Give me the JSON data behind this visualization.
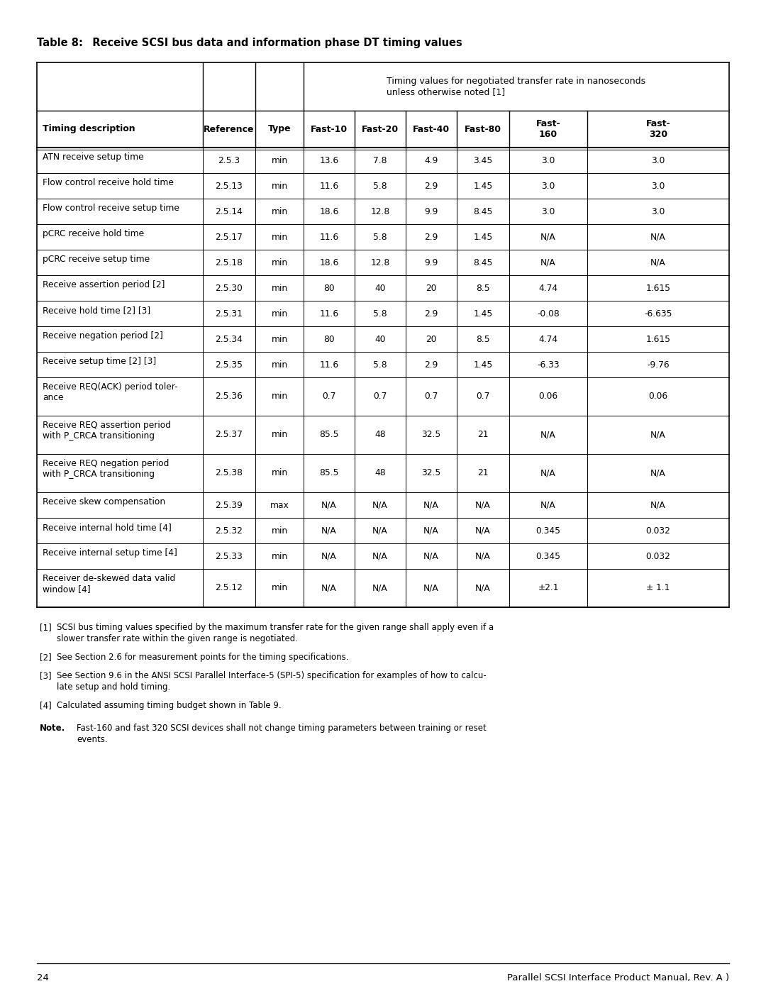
{
  "title_bold": "Table 8:",
  "title_rest": "  Receive SCSI bus data and information phase DT timing values",
  "page_number": "24",
  "footer_text": "Parallel SCSI Interface Product Manual, Rev. A )",
  "span_header": "Timing values for negotiated transfer rate in nanoseconds\nunless otherwise noted [1]",
  "col_headers_line1": [
    "",
    "",
    "",
    "Fast-10",
    "Fast-20",
    "Fast-40",
    "Fast-80",
    "Fast-",
    "Fast-"
  ],
  "col_headers_line2": [
    "Timing description",
    "Reference",
    "Type",
    "",
    "",
    "",
    "",
    "160",
    "320"
  ],
  "rows": [
    [
      "ATN receive setup time",
      "2.5.3",
      "min",
      "13.6",
      "7.8",
      "4.9",
      "3.45",
      "3.0",
      "3.0"
    ],
    [
      "Flow control receive hold time",
      "2.5.13",
      "min",
      "11.6",
      "5.8",
      "2.9",
      "1.45",
      "3.0",
      "3.0"
    ],
    [
      "Flow control receive setup time",
      "2.5.14",
      "min",
      "18.6",
      "12.8",
      "9.9",
      "8.45",
      "3.0",
      "3.0"
    ],
    [
      "pCRC receive hold time",
      "2.5.17",
      "min",
      "11.6",
      "5.8",
      "2.9",
      "1.45",
      "N/A",
      "N/A"
    ],
    [
      "pCRC receive setup time",
      "2.5.18",
      "min",
      "18.6",
      "12.8",
      "9.9",
      "8.45",
      "N/A",
      "N/A"
    ],
    [
      "Receive assertion period [2]",
      "2.5.30",
      "min",
      "80",
      "40",
      "20",
      "8.5",
      "4.74",
      "1.615"
    ],
    [
      "Receive hold time [2] [3]",
      "2.5.31",
      "min",
      "11.6",
      "5.8",
      "2.9",
      "1.45",
      "-0.08",
      "-6.635"
    ],
    [
      "Receive negation period [2]",
      "2.5.34",
      "min",
      "80",
      "40",
      "20",
      "8.5",
      "4.74",
      "1.615"
    ],
    [
      "Receive setup time [2] [3]",
      "2.5.35",
      "min",
      "11.6",
      "5.8",
      "2.9",
      "1.45",
      "-6.33",
      "-9.76"
    ],
    [
      "Receive REQ(ACK) period toler-\nance",
      "2.5.36",
      "min",
      "0.7",
      "0.7",
      "0.7",
      "0.7",
      "0.06",
      "0.06"
    ],
    [
      "Receive REQ assertion period\nwith P_CRCA transitioning",
      "2.5.37",
      "min",
      "85.5",
      "48",
      "32.5",
      "21",
      "N/A",
      "N/A"
    ],
    [
      "Receive REQ negation period\nwith P_CRCA transitioning",
      "2.5.38",
      "min",
      "85.5",
      "48",
      "32.5",
      "21",
      "N/A",
      "N/A"
    ],
    [
      "Receive skew compensation",
      "2.5.39",
      "max",
      "N/A",
      "N/A",
      "N/A",
      "N/A",
      "N/A",
      "N/A"
    ],
    [
      "Receive internal hold time [4]",
      "2.5.32",
      "min",
      "N/A",
      "N/A",
      "N/A",
      "N/A",
      "0.345",
      "0.032"
    ],
    [
      "Receive internal setup time [4]",
      "2.5.33",
      "min",
      "N/A",
      "N/A",
      "N/A",
      "N/A",
      "0.345",
      "0.032"
    ],
    [
      "Receiver de-skewed data valid\nwindow [4]",
      "2.5.12",
      "min",
      "N/A",
      "N/A",
      "N/A",
      "N/A",
      "±2.1",
      "± 1.1"
    ]
  ],
  "footnote1": "[1]",
  "footnote1_text": "SCSI bus timing values specified by the maximum transfer rate for the given range shall apply even if a\nslower transfer rate within the given range is negotiated.",
  "footnote2": "[2]",
  "footnote2_text": "See Section 2.6 for measurement points for the timing specifications.",
  "footnote3": "[3]",
  "footnote3_text": "See Section 9.6 in the ANSI SCSI Parallel Interface-5 (SPI-5) specification for examples of how to calcu-\nlate setup and hold timing.",
  "footnote4": "[4]",
  "footnote4_text": "Calculated assuming timing budget shown in Table 9.",
  "note_label": "Note.",
  "note_text": "Fast-160 and fast 320 SCSI devices shall not change timing parameters between training or reset\nevents.",
  "bg_color": "#ffffff",
  "text_color": "#000000"
}
